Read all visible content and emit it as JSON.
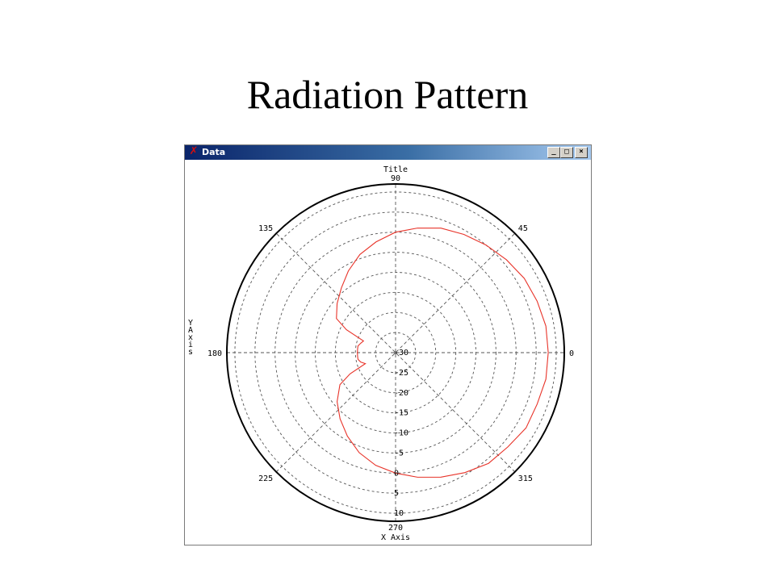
{
  "slide": {
    "title": "Radiation Pattern"
  },
  "window": {
    "title": "Data",
    "icon": "x-logo-icon",
    "controls": [
      "minimize-icon",
      "maximize-icon",
      "close-icon"
    ]
  },
  "colors": {
    "trace": "#e8342a",
    "grid": "#555555",
    "outline": "#000000",
    "titlebar": "#0a246a"
  },
  "chart_data": {
    "type": "line",
    "projection": "polar",
    "title": "Title",
    "xlabel": "X Axis",
    "ylabel": "Y Axis",
    "angle_unit": "degrees",
    "angle_ticks": [
      0,
      45,
      90,
      135,
      180,
      225,
      270,
      315
    ],
    "radial_ticks": [
      -30,
      -25,
      -20,
      -15,
      -10,
      -5,
      0,
      5,
      10
    ],
    "rlim": [
      -30,
      12
    ],
    "grid": true,
    "series": [
      {
        "color": "#e8342a",
        "theta": [
          0,
          10,
          20,
          30,
          40,
          50,
          60,
          70,
          80,
          90,
          100,
          110,
          120,
          130,
          140,
          150,
          155,
          160,
          165,
          170,
          175,
          180,
          185,
          190,
          195,
          200,
          205,
          210,
          220,
          230,
          240,
          250,
          260,
          270,
          280,
          290,
          300,
          310,
          320,
          330,
          340,
          350,
          360
        ],
        "r": [
          8,
          8,
          7.5,
          7,
          6,
          5,
          4,
          3,
          1.5,
          0,
          -2,
          -4,
          -6.5,
          -9,
          -11,
          -13,
          -16.5,
          -21.5,
          -21,
          -20.5,
          -20.5,
          -20.5,
          -20.5,
          -20.5,
          -21,
          -22,
          -17.5,
          -14,
          -11,
          -8.5,
          -6,
          -3.5,
          -1.5,
          0,
          1.5,
          3,
          4.5,
          6,
          6.5,
          7.5,
          7.5,
          8,
          8
        ]
      }
    ]
  }
}
